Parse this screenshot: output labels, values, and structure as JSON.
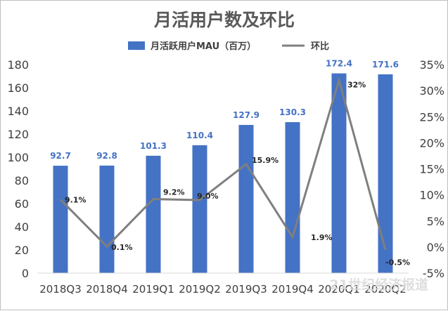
{
  "chart_data": {
    "type": "bar",
    "title": "月活用户数及环比",
    "categories": [
      "2018Q3",
      "2018Q4",
      "2019Q1",
      "2019Q2",
      "2019Q3",
      "2019Q4",
      "2020Q1",
      "2020Q2"
    ],
    "series": [
      {
        "name": "月活跃用户MAU（百万）",
        "type": "bar",
        "axis": "left",
        "color": "#4472c4",
        "values": [
          92.7,
          92.8,
          101.3,
          110.4,
          127.9,
          130.3,
          172.4,
          171.6
        ],
        "labels": [
          "92.7",
          "92.8",
          "101.3",
          "110.4",
          "127.9",
          "130.3",
          "172.4",
          "171.6"
        ]
      },
      {
        "name": "环比",
        "type": "line",
        "axis": "right",
        "color": "#7f7f7f",
        "values": [
          9.1,
          0.1,
          9.2,
          9.0,
          15.9,
          1.9,
          32,
          -0.5
        ],
        "labels": [
          "9.1%",
          "0.1%",
          "9.2%",
          "9.0%",
          "15.9%",
          "1.9%",
          "32%",
          "-0.5%"
        ]
      }
    ],
    "y_left": {
      "min": 0,
      "max": 180,
      "ticks": [
        "0",
        "20",
        "40",
        "60",
        "80",
        "100",
        "120",
        "140",
        "160",
        "180"
      ]
    },
    "y_right": {
      "min": -5,
      "max": 35,
      "ticks": [
        "-5%",
        "0%",
        "5%",
        "10%",
        "15%",
        "20%",
        "25%",
        "30%",
        "35%"
      ]
    },
    "grid": false,
    "legend_position": "top"
  },
  "watermark": "21世纪经济报道"
}
